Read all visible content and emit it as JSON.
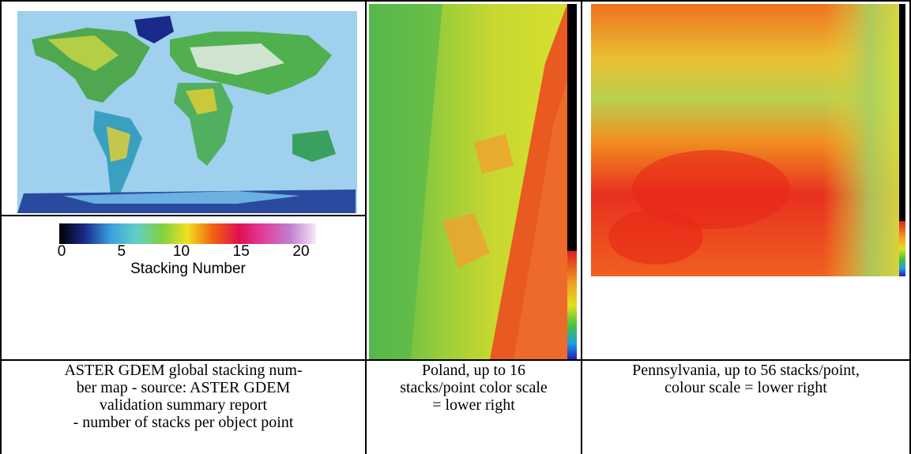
{
  "figure": {
    "cells": [
      {
        "caption_lines": [
          "ASTER GDEM global stacking num-",
          "ber map - source: ASTER GDEM",
          "validation summary report",
          "- number of stacks per object point"
        ]
      },
      {
        "caption_lines": [
          "Poland, up to 16",
          "stacks/point color scale",
          "= lower right"
        ]
      },
      {
        "caption_lines": [
          "Pennsylvania, up to 56 stacks/point,",
          "colour scale = lower right"
        ]
      }
    ],
    "legend": {
      "ticks": [
        0,
        5,
        10,
        15,
        20
      ],
      "label": "Stacking Number"
    }
  }
}
